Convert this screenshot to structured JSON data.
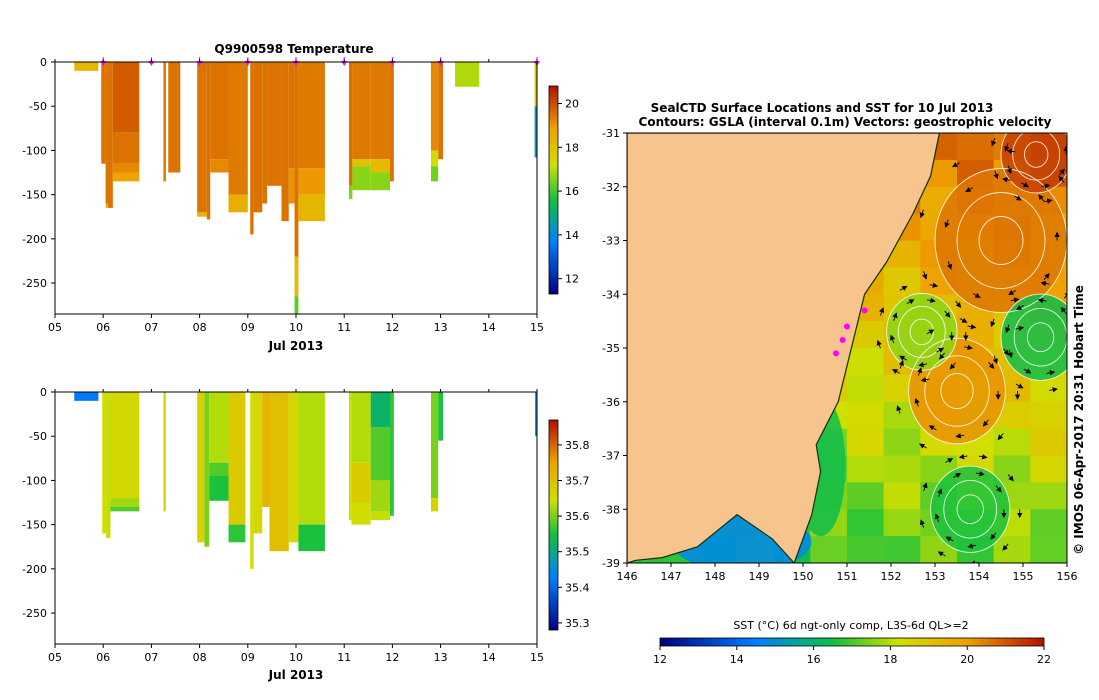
{
  "chart_data": [
    {
      "type": "heatmap",
      "title": "Q9900598  Temperature",
      "xlabel": "Jul 2013",
      "x_ticks": [
        "05",
        "06",
        "07",
        "08",
        "09",
        "10",
        "11",
        "12",
        "13",
        "14",
        "15"
      ],
      "xlim": [
        5,
        15
      ],
      "y_ticks": [
        "0",
        "-50",
        "-100",
        "-150",
        "-200",
        "-250"
      ],
      "ylim": [
        -285,
        0
      ],
      "colorbar_ticks": [
        "12",
        "14",
        "16",
        "18",
        "20"
      ],
      "colorbar_range": [
        11.3,
        20.8
      ],
      "profile_markers_day": [
        6.0,
        7.0,
        8.0,
        9.0,
        10.0,
        11.0,
        12.0,
        13.0,
        15.0
      ],
      "profiles": [
        {
          "x0": 5.4,
          "x1": 5.9,
          "bands": [
            [
              0,
              -10,
              18.3
            ]
          ]
        },
        {
          "x0": 5.96,
          "x1": 6.05,
          "bands": [
            [
              0,
              -115,
              19.5
            ]
          ]
        },
        {
          "x0": 6.05,
          "x1": 6.1,
          "bands": [
            [
              0,
              -160,
              19.5
            ],
            [
              -160,
              -165,
              18.2
            ]
          ]
        },
        {
          "x0": 6.1,
          "x1": 6.2,
          "bands": [
            [
              0,
              -165,
              19.5
            ]
          ]
        },
        {
          "x0": 6.2,
          "x1": 6.75,
          "bands": [
            [
              0,
              -80,
              19.8
            ],
            [
              -80,
              -115,
              19.5
            ],
            [
              -115,
              -125,
              19.2
            ],
            [
              -125,
              -135,
              18.8
            ]
          ]
        },
        {
          "x0": 7.25,
          "x1": 7.3,
          "bands": [
            [
              0,
              -135,
              19.5
            ]
          ]
        },
        {
          "x0": 7.35,
          "x1": 7.6,
          "bands": [
            [
              0,
              -125,
              19.5
            ]
          ]
        },
        {
          "x0": 7.95,
          "x1": 8.15,
          "bands": [
            [
              0,
              -170,
              19.5
            ],
            [
              -170,
              -175,
              18.3
            ]
          ]
        },
        {
          "x0": 8.15,
          "x1": 8.22,
          "bands": [
            [
              0,
              -178,
              19.5
            ]
          ]
        },
        {
          "x0": 8.22,
          "x1": 8.6,
          "bands": [
            [
              0,
              -110,
              19.5
            ],
            [
              -110,
              -125,
              19.2
            ]
          ]
        },
        {
          "x0": 8.6,
          "x1": 9.0,
          "bands": [
            [
              0,
              -150,
              19.4
            ],
            [
              -150,
              -170,
              18.5
            ]
          ]
        },
        {
          "x0": 9.05,
          "x1": 9.12,
          "bands": [
            [
              0,
              -195,
              19.5
            ]
          ]
        },
        {
          "x0": 9.12,
          "x1": 9.3,
          "bands": [
            [
              0,
              -170,
              19.5
            ]
          ]
        },
        {
          "x0": 9.3,
          "x1": 9.4,
          "bands": [
            [
              0,
              -160,
              19.5
            ]
          ]
        },
        {
          "x0": 9.4,
          "x1": 9.7,
          "bands": [
            [
              0,
              -140,
              19.5
            ]
          ]
        },
        {
          "x0": 9.7,
          "x1": 9.85,
          "bands": [
            [
              0,
              -180,
              19.5
            ]
          ]
        },
        {
          "x0": 9.85,
          "x1": 9.97,
          "bands": [
            [
              0,
              -120,
              19.5
            ],
            [
              -120,
              -160,
              19.1
            ]
          ]
        },
        {
          "x0": 9.97,
          "x1": 10.05,
          "bands": [
            [
              0,
              -220,
              19.5
            ],
            [
              -220,
              -265,
              18.2
            ],
            [
              -265,
              -285,
              16.2
            ]
          ]
        },
        {
          "x0": 10.05,
          "x1": 10.6,
          "bands": [
            [
              0,
              -120,
              19.4
            ],
            [
              -120,
              -150,
              19.0
            ],
            [
              -150,
              -180,
              18.3
            ]
          ]
        },
        {
          "x0": 11.1,
          "x1": 11.17,
          "bands": [
            [
              0,
              -140,
              19.5
            ],
            [
              -140,
              -155,
              16.5
            ]
          ]
        },
        {
          "x0": 11.17,
          "x1": 11.55,
          "bands": [
            [
              0,
              -110,
              19.4
            ],
            [
              -110,
              -118,
              18.0
            ],
            [
              -118,
              -145,
              16.6
            ]
          ]
        },
        {
          "x0": 11.55,
          "x1": 11.95,
          "bands": [
            [
              0,
              -110,
              19.4
            ],
            [
              -110,
              -125,
              18.2
            ],
            [
              -125,
              -145,
              16.6
            ]
          ]
        },
        {
          "x0": 11.95,
          "x1": 12.03,
          "bands": [
            [
              0,
              -135,
              19.5
            ]
          ]
        },
        {
          "x0": 12.8,
          "x1": 12.95,
          "bands": [
            [
              0,
              -100,
              19.2
            ],
            [
              -100,
              -118,
              17.3
            ],
            [
              -118,
              -135,
              16.4
            ]
          ]
        },
        {
          "x0": 12.95,
          "x1": 13.05,
          "bands": [
            [
              0,
              -110,
              19.5
            ]
          ]
        },
        {
          "x0": 13.3,
          "x1": 13.8,
          "bands": [
            [
              0,
              -28,
              16.9
            ]
          ]
        },
        {
          "x0": 14.95,
          "x1": 15.0,
          "bands": [
            [
              0,
              -50,
              17.8
            ],
            [
              -50,
              -108,
              14.4
            ]
          ]
        }
      ]
    },
    {
      "type": "heatmap",
      "title": "",
      "xlabel": "Jul 2013",
      "x_ticks": [
        "05",
        "06",
        "07",
        "08",
        "09",
        "10",
        "11",
        "12",
        "13",
        "14",
        "15"
      ],
      "xlim": [
        5,
        15
      ],
      "y_ticks": [
        "0",
        "-50",
        "-100",
        "-150",
        "-200",
        "-250"
      ],
      "ylim": [
        -285,
        0
      ],
      "colorbar_ticks": [
        "35.3",
        "35.4",
        "35.5",
        "35.6",
        "35.7",
        "35.8"
      ],
      "colorbar_range": [
        35.28,
        35.87
      ],
      "profiles": [
        {
          "x0": 5.4,
          "x1": 5.9,
          "bands": [
            [
              0,
              -10,
              35.42
            ]
          ]
        },
        {
          "x0": 5.98,
          "x1": 6.06,
          "bands": [
            [
              0,
              -160,
              35.65
            ]
          ]
        },
        {
          "x0": 6.06,
          "x1": 6.15,
          "bands": [
            [
              0,
              -165,
              35.64
            ]
          ]
        },
        {
          "x0": 6.15,
          "x1": 6.75,
          "bands": [
            [
              0,
              -120,
              35.66
            ],
            [
              -120,
              -130,
              35.62
            ],
            [
              -130,
              -135,
              35.58
            ]
          ]
        },
        {
          "x0": 7.25,
          "x1": 7.3,
          "bands": [
            [
              0,
              -135,
              35.66
            ]
          ]
        },
        {
          "x0": 7.95,
          "x1": 8.1,
          "bands": [
            [
              0,
              -170,
              35.67
            ]
          ]
        },
        {
          "x0": 8.1,
          "x1": 8.2,
          "bands": [
            [
              0,
              -175,
              35.6
            ]
          ]
        },
        {
          "x0": 8.2,
          "x1": 8.6,
          "bands": [
            [
              0,
              -80,
              35.63
            ],
            [
              -80,
              -95,
              35.58
            ],
            [
              -95,
              -123,
              35.55
            ]
          ]
        },
        {
          "x0": 8.6,
          "x1": 8.95,
          "bands": [
            [
              0,
              -150,
              35.68
            ],
            [
              -150,
              -170,
              35.56
            ]
          ]
        },
        {
          "x0": 9.05,
          "x1": 9.12,
          "bands": [
            [
              0,
              -200,
              35.65
            ]
          ]
        },
        {
          "x0": 9.12,
          "x1": 9.3,
          "bands": [
            [
              0,
              -160,
              35.66
            ]
          ]
        },
        {
          "x0": 9.3,
          "x1": 9.45,
          "bands": [
            [
              0,
              -130,
              35.72
            ]
          ]
        },
        {
          "x0": 9.45,
          "x1": 9.85,
          "bands": [
            [
              0,
              -180,
              35.7
            ]
          ]
        },
        {
          "x0": 9.85,
          "x1": 10.05,
          "bands": [
            [
              0,
              -170,
              35.66
            ]
          ]
        },
        {
          "x0": 10.05,
          "x1": 10.6,
          "bands": [
            [
              0,
              -150,
              35.63
            ],
            [
              -150,
              -180,
              35.55
            ]
          ]
        },
        {
          "x0": 11.1,
          "x1": 11.15,
          "bands": [
            [
              0,
              -145,
              35.65
            ]
          ]
        },
        {
          "x0": 11.15,
          "x1": 11.55,
          "bands": [
            [
              0,
              -80,
              35.63
            ],
            [
              -80,
              -125,
              35.68
            ],
            [
              -125,
              -150,
              35.65
            ]
          ]
        },
        {
          "x0": 11.55,
          "x1": 11.95,
          "bands": [
            [
              0,
              -40,
              35.52
            ],
            [
              -40,
              -100,
              35.58
            ],
            [
              -100,
              -135,
              35.62
            ],
            [
              -135,
              -145,
              35.64
            ]
          ]
        },
        {
          "x0": 11.95,
          "x1": 12.03,
          "bands": [
            [
              0,
              -140,
              35.56
            ]
          ]
        },
        {
          "x0": 12.8,
          "x1": 12.95,
          "bands": [
            [
              0,
              -120,
              35.6
            ],
            [
              -120,
              -135,
              35.67
            ]
          ]
        },
        {
          "x0": 12.95,
          "x1": 13.05,
          "bands": [
            [
              0,
              -55,
              35.55
            ]
          ]
        },
        {
          "x0": 14.96,
          "x1": 15.0,
          "bands": [
            [
              0,
              -50,
              35.45
            ]
          ]
        }
      ]
    },
    {
      "type": "heatmap",
      "title_line1": "SealCTD Surface Locations and SST for 10 Jul 2013",
      "title_line2": "Contours: GSLA (interval 0.1m) Vectors: geostrophic velocity",
      "x_ticks": [
        "146",
        "147",
        "148",
        "149",
        "150",
        "151",
        "152",
        "153",
        "154",
        "155",
        "156"
      ],
      "xlim": [
        146,
        156
      ],
      "y_ticks": [
        "-31",
        "-32",
        "-33",
        "-34",
        "-35",
        "-36",
        "-37",
        "-38",
        "-39"
      ],
      "ylim": [
        -39,
        -31
      ],
      "colorbar_label": "SST (°C) 6d ngt-only comp, L3S-6d QL>=2",
      "colorbar_ticks": [
        "12",
        "14",
        "16",
        "18",
        "20",
        "22"
      ],
      "colorbar_range": [
        12,
        22
      ],
      "side_label": "© IMOS 06-Apr-2017 20:31 Hobart Time",
      "coastline": [
        [
          149.8,
          -39
        ],
        [
          149.3,
          -38.55
        ],
        [
          148.5,
          -38.1
        ],
        [
          147.6,
          -38.7
        ],
        [
          146.8,
          -38.9
        ],
        [
          146.2,
          -38.95
        ],
        [
          146,
          -39
        ]
      ],
      "coast_east": [
        [
          149.8,
          -39
        ],
        [
          150.2,
          -38.1
        ],
        [
          150.4,
          -37.3
        ],
        [
          150.3,
          -36.8
        ],
        [
          150.8,
          -36
        ],
        [
          151.1,
          -35
        ],
        [
          151.4,
          -34
        ],
        [
          151.9,
          -33.4
        ],
        [
          152.5,
          -32.5
        ],
        [
          152.9,
          -31.8
        ],
        [
          153.1,
          -31
        ]
      ],
      "seal_locations": [
        [
          150.75,
          -35.1
        ],
        [
          150.9,
          -34.85
        ],
        [
          151.0,
          -34.6
        ],
        [
          151.4,
          -34.3
        ]
      ],
      "eddies": [
        {
          "lon": 153.5,
          "lat": -35.8,
          "r": 1.1,
          "sst": 20.2
        },
        {
          "lon": 154.5,
          "lat": -33,
          "r": 1.5,
          "sst": 20.6
        },
        {
          "lon": 152.7,
          "lat": -34.7,
          "r": 0.8,
          "sst": 17.6
        },
        {
          "lon": 155.4,
          "lat": -34.8,
          "r": 0.9,
          "sst": 16.4
        },
        {
          "lon": 153.8,
          "lat": -38,
          "r": 0.9,
          "sst": 16.6
        },
        {
          "lon": 155.3,
          "lat": -31.4,
          "r": 0.8,
          "sst": 21.3
        }
      ]
    }
  ]
}
